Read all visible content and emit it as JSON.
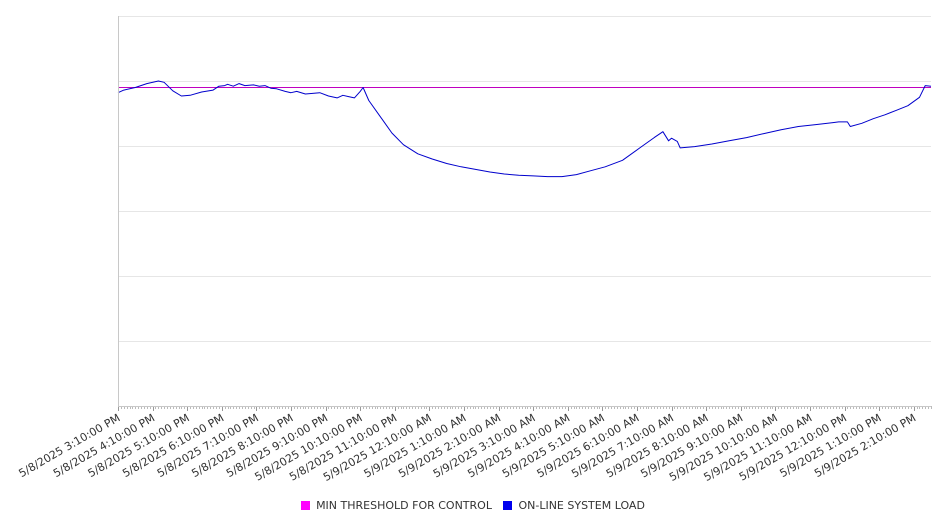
{
  "chart_data": {
    "type": "line",
    "title": "",
    "xlabel": "",
    "ylabel": "",
    "grid": true,
    "legend_position": "bottom",
    "x_start": "5/8/2025 3:10:00 PM",
    "x_end": "5/9/2025 2:40:00 PM",
    "x_step_minutes": 5,
    "ylim": [
      0,
      6
    ],
    "tick_labels": [
      "5/8/2025 3:10:00 PM",
      "5/8/2025 4:10:00 PM",
      "5/8/2025 5:10:00 PM",
      "5/8/2025 6:10:00 PM",
      "5/8/2025 7:10:00 PM",
      "5/8/2025 8:10:00 PM",
      "5/8/2025 9:10:00 PM",
      "5/8/2025 10:10:00 PM",
      "5/8/2025 11:10:00 PM",
      "5/9/2025 12:10:00 AM",
      "5/9/2025 1:10:00 AM",
      "5/9/2025 2:10:00 AM",
      "5/9/2025 3:10:00 AM",
      "5/9/2025 4:10:00 AM",
      "5/9/2025 5:10:00 AM",
      "5/9/2025 6:10:00 AM",
      "5/9/2025 7:10:00 AM",
      "5/9/2025 8:10:00 AM",
      "5/9/2025 9:10:00 AM",
      "5/9/2025 10:10:00 AM",
      "5/9/2025 11:10:00 AM",
      "5/9/2025 12:10:00 PM",
      "5/9/2025 1:10:00 PM",
      "5/9/2025 2:10:00 PM"
    ],
    "series": [
      {
        "name": "MIN THRESHOLD FOR CONTROL",
        "color": "#ff00ff",
        "line_color": "#c000c0",
        "values": [
          [
            0,
            4.9
          ],
          [
            282,
            4.9
          ]
        ]
      },
      {
        "name": "ON-LINE SYSTEM LOAD",
        "color": "#0000ee",
        "line_color": "#0000cc",
        "values": [
          [
            0,
            4.82
          ],
          [
            2,
            4.86
          ],
          [
            6,
            4.9
          ],
          [
            10,
            4.96
          ],
          [
            14,
            5.0
          ],
          [
            16,
            4.98
          ],
          [
            19,
            4.85
          ],
          [
            22,
            4.77
          ],
          [
            25,
            4.78
          ],
          [
            29,
            4.83
          ],
          [
            33,
            4.86
          ],
          [
            35,
            4.92
          ],
          [
            37,
            4.93
          ],
          [
            38,
            4.95
          ],
          [
            40,
            4.92
          ],
          [
            42,
            4.96
          ],
          [
            44,
            4.93
          ],
          [
            47,
            4.94
          ],
          [
            49,
            4.92
          ],
          [
            51,
            4.93
          ],
          [
            53,
            4.89
          ],
          [
            55,
            4.88
          ],
          [
            58,
            4.84
          ],
          [
            60,
            4.82
          ],
          [
            62,
            4.84
          ],
          [
            65,
            4.8
          ],
          [
            70,
            4.82
          ],
          [
            73,
            4.77
          ],
          [
            76,
            4.74
          ],
          [
            78,
            4.78
          ],
          [
            80,
            4.76
          ],
          [
            82,
            4.74
          ],
          [
            84,
            4.84
          ],
          [
            85,
            4.9
          ],
          [
            87,
            4.7
          ],
          [
            91,
            4.45
          ],
          [
            95,
            4.2
          ],
          [
            99,
            4.02
          ],
          [
            104,
            3.88
          ],
          [
            109,
            3.8
          ],
          [
            114,
            3.73
          ],
          [
            119,
            3.68
          ],
          [
            124,
            3.64
          ],
          [
            129,
            3.6
          ],
          [
            134,
            3.57
          ],
          [
            139,
            3.55
          ],
          [
            144,
            3.54
          ],
          [
            149,
            3.53
          ],
          [
            154,
            3.53
          ],
          [
            159,
            3.56
          ],
          [
            164,
            3.62
          ],
          [
            169,
            3.68
          ],
          [
            175,
            3.78
          ],
          [
            181,
            3.97
          ],
          [
            186,
            4.13
          ],
          [
            189,
            4.22
          ],
          [
            191,
            4.08
          ],
          [
            192,
            4.12
          ],
          [
            194,
            4.07
          ],
          [
            195,
            3.97
          ],
          [
            200,
            3.99
          ],
          [
            206,
            4.03
          ],
          [
            212,
            4.08
          ],
          [
            218,
            4.13
          ],
          [
            224,
            4.19
          ],
          [
            230,
            4.25
          ],
          [
            236,
            4.3
          ],
          [
            242,
            4.33
          ],
          [
            248,
            4.36
          ],
          [
            250,
            4.37
          ],
          [
            253,
            4.37
          ],
          [
            254,
            4.3
          ],
          [
            258,
            4.35
          ],
          [
            262,
            4.42
          ],
          [
            266,
            4.48
          ],
          [
            270,
            4.55
          ],
          [
            274,
            4.62
          ],
          [
            278,
            4.75
          ],
          [
            280,
            4.93
          ],
          [
            282,
            4.92
          ]
        ]
      }
    ]
  }
}
